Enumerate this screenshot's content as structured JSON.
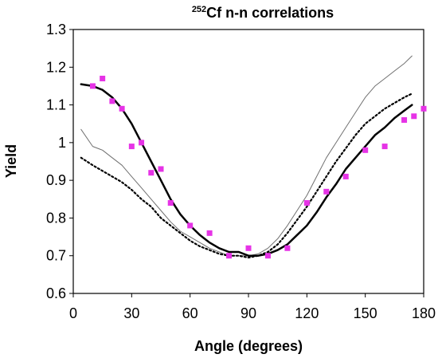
{
  "chart_data": {
    "type": "line",
    "title_superscript": "252",
    "title": "Cf n-n correlations",
    "xlabel": "Angle (degrees)",
    "ylabel": "Yield",
    "xlim": [
      0,
      180
    ],
    "ylim": [
      0.6,
      1.3
    ],
    "xticks": [
      "0",
      "30",
      "60",
      "90",
      "120",
      "150",
      "180"
    ],
    "yticks": [
      "0.6",
      "0.7",
      "0.8",
      "0.9",
      "1",
      "1.1",
      "1.2",
      "1.3"
    ],
    "grid": false,
    "legend": "none",
    "series": [
      {
        "style": "markers",
        "color": "#e633e6",
        "points": [
          [
            10,
            1.15
          ],
          [
            15,
            1.17
          ],
          [
            20,
            1.11
          ],
          [
            25,
            1.09
          ],
          [
            30,
            0.99
          ],
          [
            35,
            1.0
          ],
          [
            40,
            0.92
          ],
          [
            45,
            0.93
          ],
          [
            50,
            0.84
          ],
          [
            60,
            0.78
          ],
          [
            70,
            0.76
          ],
          [
            80,
            0.7
          ],
          [
            90,
            0.72
          ],
          [
            100,
            0.7
          ],
          [
            110,
            0.72
          ],
          [
            120,
            0.84
          ],
          [
            130,
            0.87
          ],
          [
            140,
            0.91
          ],
          [
            150,
            0.98
          ],
          [
            160,
            0.99
          ],
          [
            170,
            1.06
          ],
          [
            175,
            1.07
          ],
          [
            180,
            1.09
          ]
        ]
      },
      {
        "style": "thick-solid",
        "color": "#000000",
        "points": [
          [
            4,
            1.155
          ],
          [
            10,
            1.15
          ],
          [
            15,
            1.14
          ],
          [
            20,
            1.12
          ],
          [
            25,
            1.09
          ],
          [
            30,
            1.05
          ],
          [
            35,
            1.0
          ],
          [
            40,
            0.95
          ],
          [
            45,
            0.9
          ],
          [
            50,
            0.85
          ],
          [
            55,
            0.81
          ],
          [
            60,
            0.78
          ],
          [
            65,
            0.755
          ],
          [
            70,
            0.735
          ],
          [
            75,
            0.72
          ],
          [
            80,
            0.71
          ],
          [
            85,
            0.71
          ],
          [
            90,
            0.7
          ],
          [
            95,
            0.7
          ],
          [
            100,
            0.705
          ],
          [
            105,
            0.715
          ],
          [
            110,
            0.73
          ],
          [
            115,
            0.755
          ],
          [
            120,
            0.78
          ],
          [
            125,
            0.815
          ],
          [
            130,
            0.855
          ],
          [
            135,
            0.89
          ],
          [
            140,
            0.93
          ],
          [
            145,
            0.96
          ],
          [
            150,
            0.99
          ],
          [
            155,
            1.02
          ],
          [
            160,
            1.04
          ],
          [
            165,
            1.065
          ],
          [
            170,
            1.085
          ],
          [
            174,
            1.1
          ]
        ]
      },
      {
        "style": "thin-solid",
        "color": "#707070",
        "points": [
          [
            4,
            1.035
          ],
          [
            10,
            0.99
          ],
          [
            15,
            0.98
          ],
          [
            20,
            0.96
          ],
          [
            25,
            0.94
          ],
          [
            30,
            0.91
          ],
          [
            35,
            0.88
          ],
          [
            40,
            0.85
          ],
          [
            45,
            0.82
          ],
          [
            50,
            0.79
          ],
          [
            55,
            0.765
          ],
          [
            60,
            0.75
          ],
          [
            65,
            0.735
          ],
          [
            70,
            0.72
          ],
          [
            75,
            0.71
          ],
          [
            80,
            0.7
          ],
          [
            85,
            0.7
          ],
          [
            90,
            0.7
          ],
          [
            95,
            0.705
          ],
          [
            100,
            0.72
          ],
          [
            105,
            0.745
          ],
          [
            110,
            0.78
          ],
          [
            115,
            0.82
          ],
          [
            120,
            0.86
          ],
          [
            125,
            0.91
          ],
          [
            130,
            0.96
          ],
          [
            135,
            1.0
          ],
          [
            140,
            1.04
          ],
          [
            145,
            1.08
          ],
          [
            150,
            1.12
          ],
          [
            155,
            1.15
          ],
          [
            160,
            1.17
          ],
          [
            165,
            1.19
          ],
          [
            170,
            1.21
          ],
          [
            174,
            1.23
          ]
        ]
      },
      {
        "style": "dotted",
        "color": "#000000",
        "points": [
          [
            4,
            0.96
          ],
          [
            10,
            0.94
          ],
          [
            15,
            0.925
          ],
          [
            20,
            0.91
          ],
          [
            25,
            0.895
          ],
          [
            30,
            0.875
          ],
          [
            35,
            0.85
          ],
          [
            40,
            0.83
          ],
          [
            45,
            0.8
          ],
          [
            50,
            0.78
          ],
          [
            55,
            0.76
          ],
          [
            60,
            0.74
          ],
          [
            65,
            0.725
          ],
          [
            70,
            0.715
          ],
          [
            75,
            0.705
          ],
          [
            80,
            0.7
          ],
          [
            85,
            0.7
          ],
          [
            90,
            0.695
          ],
          [
            95,
            0.7
          ],
          [
            100,
            0.71
          ],
          [
            105,
            0.73
          ],
          [
            110,
            0.76
          ],
          [
            115,
            0.795
          ],
          [
            120,
            0.83
          ],
          [
            125,
            0.87
          ],
          [
            130,
            0.91
          ],
          [
            135,
            0.95
          ],
          [
            140,
            0.985
          ],
          [
            145,
            1.02
          ],
          [
            150,
            1.05
          ],
          [
            155,
            1.07
          ],
          [
            160,
            1.09
          ],
          [
            165,
            1.105
          ],
          [
            170,
            1.12
          ],
          [
            174,
            1.13
          ]
        ]
      }
    ]
  }
}
